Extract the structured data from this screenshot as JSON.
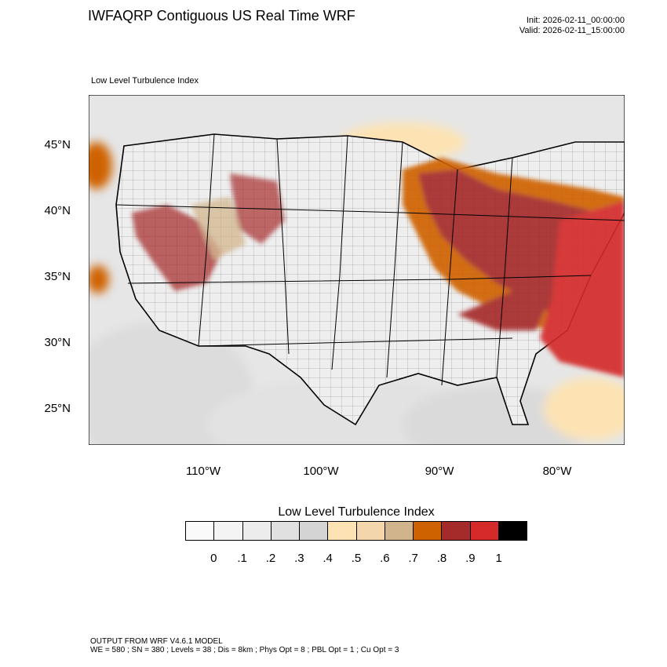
{
  "header": {
    "title": "IWFAQRP Contiguous US Real Time WRF",
    "init": "Init: 2026-02-11_00:00:00",
    "valid": "Valid: 2026-02-11_15:00:00"
  },
  "map": {
    "field_name": "Low Level Turbulence Index",
    "lat_labels": [
      "45°N",
      "40°N",
      "35°N",
      "30°N",
      "25°N"
    ],
    "lon_labels": [
      "110°W",
      "100°W",
      "90°W",
      "80°W"
    ]
  },
  "colorbar": {
    "title": "Low Level Turbulence Index",
    "labels": [
      "0",
      ".1",
      ".2",
      ".3",
      ".4",
      ".5",
      ".6",
      ".7",
      ".8",
      ".9",
      "1"
    ],
    "colors": [
      "#fafafa",
      "#f4f4f4",
      "#ececec",
      "#e0e0e0",
      "#d4d4d4",
      "#fde3b4",
      "#f3d6ab",
      "#d2b48c",
      "#cf6200",
      "#a52a2a",
      "#d42a2a",
      "#000000"
    ]
  },
  "footer": {
    "line1": "OUTPUT FROM WRF V4.6.1 MODEL",
    "line2": "WE = 580 ; SN = 380 ; Levels = 38 ; Dis = 8km ; Phys Opt = 8 ; PBL Opt = 1 ; Cu Opt = 3"
  },
  "legend_colors": {
    "background_low": "#ececec",
    "moderate": "#d2b48c",
    "orange": "#cf6200",
    "dark_red": "#a52a2a",
    "red": "#d42a2a"
  }
}
